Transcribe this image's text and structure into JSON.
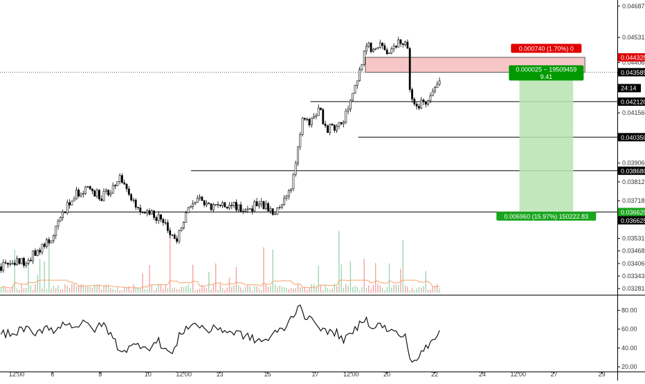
{
  "chart_data": {
    "type": "candlestick",
    "grid": false,
    "main_pane": {
      "ylim": [
        0.03254,
        0.04718
      ],
      "y_ticks": [
        "0.046875",
        "0.045315",
        "0.044065",
        "0.043560",
        "0.041560",
        "0.039060",
        "0.038125",
        "0.037185",
        "0.035310",
        "0.034685",
        "0.034060",
        "0.033435",
        "0.032810"
      ],
      "y_tick_values": [
        0.046875,
        0.045315,
        0.044065,
        0.04356,
        0.04156,
        0.03906,
        0.038125,
        0.037185,
        0.03531,
        0.034685,
        0.03406,
        0.033435,
        0.03281
      ],
      "price_overlap_label": "24:14",
      "horizontal_levels": [
        {
          "label": "0.042120",
          "value": 0.04212,
          "x_start": 13.0
        },
        {
          "label": "0.040350",
          "value": 0.04035,
          "x_start": 15.0
        },
        {
          "label": "0.038680",
          "value": 0.03868,
          "x_start": 8.0
        },
        {
          "label": "0.036625",
          "value": 0.036625,
          "x_start": 0.0
        }
      ],
      "current_price": {
        "label": "0.043585",
        "value": 0.043585
      },
      "stop_label": {
        "label": "0.044325",
        "value": 0.044325
      },
      "target_label": {
        "label": "0.036625",
        "value": 0.036625
      },
      "long_position_tool": {
        "entry": 0.043585,
        "stop": 0.044325,
        "target": 0.036625,
        "x_start": 21.75,
        "x_end": 24.0,
        "stop_text": "0.000740 (1.70%) 0",
        "entry_text_1": "0.000025 ~ 19509459",
        "entry_text_2": "9.41",
        "target_text": "0.006960 (15.97%) 150222.83"
      },
      "price_anchors": [
        [
          0.0,
          0.0339
        ],
        [
          0.4,
          0.034
        ],
        [
          1.0,
          0.0342
        ],
        [
          1.6,
          0.0347
        ],
        [
          2.0,
          0.0352
        ],
        [
          2.5,
          0.0362
        ],
        [
          2.8,
          0.0371
        ],
        [
          3.2,
          0.0376
        ],
        [
          3.7,
          0.0377
        ],
        [
          4.2,
          0.0374
        ],
        [
          4.6,
          0.0376
        ],
        [
          4.9,
          0.0384
        ],
        [
          5.2,
          0.0382
        ],
        [
          5.5,
          0.0372
        ],
        [
          5.9,
          0.0367
        ],
        [
          6.3,
          0.0366
        ],
        [
          6.7,
          0.0362
        ],
        [
          7.1,
          0.0356
        ],
        [
          7.3,
          0.035
        ],
        [
          7.6,
          0.036
        ],
        [
          7.9,
          0.0368
        ],
        [
          8.3,
          0.0372
        ],
        [
          8.8,
          0.0369
        ],
        [
          9.3,
          0.0371
        ],
        [
          9.8,
          0.0369
        ],
        [
          10.3,
          0.0368
        ],
        [
          10.8,
          0.037
        ],
        [
          11.3,
          0.0367
        ],
        [
          11.6,
          0.0367
        ],
        [
          11.9,
          0.0374
        ],
        [
          12.2,
          0.0381
        ],
        [
          12.3,
          0.0388
        ],
        [
          12.5,
          0.0402
        ],
        [
          12.6,
          0.0412
        ],
        [
          12.9,
          0.041
        ],
        [
          13.3,
          0.0418
        ],
        [
          13.6,
          0.0408
        ],
        [
          14.1,
          0.0408
        ],
        [
          14.4,
          0.0414
        ],
        [
          14.7,
          0.0422
        ],
        [
          15.0,
          0.0436
        ],
        [
          15.3,
          0.0451
        ],
        [
          15.6,
          0.0446
        ],
        [
          15.9,
          0.0451
        ],
        [
          16.2,
          0.0444
        ],
        [
          16.5,
          0.0449
        ],
        [
          16.8,
          0.0451
        ],
        [
          17.0,
          0.0451
        ],
        [
          17.1,
          0.0428
        ],
        [
          17.3,
          0.0418
        ],
        [
          17.6,
          0.0421
        ],
        [
          17.9,
          0.042
        ],
        [
          18.2,
          0.0428
        ],
        [
          18.4,
          0.0435
        ],
        [
          18.5,
          0.0437
        ]
      ],
      "volume_note": "Volume bars (green/red) with moving average overlay"
    },
    "oscillator_pane": {
      "ylim": [
        15,
        95
      ],
      "y_ticks": [
        "80.00",
        "60.00",
        "40.00",
        "20.00"
      ],
      "y_tick_values": [
        80,
        60,
        40,
        20
      ],
      "anchors": [
        [
          0.0,
          56
        ],
        [
          0.5,
          54
        ],
        [
          1.0,
          62
        ],
        [
          1.4,
          52
        ],
        [
          1.9,
          64
        ],
        [
          2.3,
          58
        ],
        [
          2.7,
          68
        ],
        [
          3.1,
          63
        ],
        [
          3.5,
          66
        ],
        [
          3.9,
          60
        ],
        [
          4.3,
          65
        ],
        [
          4.7,
          50
        ],
        [
          5.0,
          37
        ],
        [
          5.4,
          40
        ],
        [
          5.8,
          44
        ],
        [
          6.2,
          41
        ],
        [
          6.6,
          47
        ],
        [
          7.0,
          36
        ],
        [
          7.2,
          33
        ],
        [
          7.5,
          55
        ],
        [
          7.9,
          65
        ],
        [
          8.3,
          64
        ],
        [
          8.7,
          58
        ],
        [
          9.1,
          62
        ],
        [
          9.5,
          57
        ],
        [
          9.9,
          56
        ],
        [
          10.3,
          52
        ],
        [
          10.7,
          48
        ],
        [
          11.1,
          48
        ],
        [
          11.5,
          56
        ],
        [
          11.9,
          62
        ],
        [
          12.2,
          73
        ],
        [
          12.5,
          88
        ],
        [
          12.8,
          70
        ],
        [
          13.2,
          68
        ],
        [
          13.6,
          56
        ],
        [
          14.0,
          57
        ],
        [
          14.4,
          48
        ],
        [
          14.8,
          58
        ],
        [
          15.2,
          72
        ],
        [
          15.5,
          64
        ],
        [
          15.9,
          64
        ],
        [
          16.3,
          58
        ],
        [
          16.7,
          54
        ],
        [
          17.0,
          50
        ],
        [
          17.1,
          28
        ],
        [
          17.3,
          26
        ],
        [
          17.6,
          34
        ],
        [
          18.0,
          45
        ],
        [
          18.3,
          55
        ],
        [
          18.5,
          58
        ]
      ]
    },
    "x_axis": {
      "xlim": [
        0,
        25.85
      ],
      "ticks": [
        {
          "label": "12:00",
          "value": 0.7
        },
        {
          "label": "6",
          "value": 2.2
        },
        {
          "label": "8",
          "value": 4.2
        },
        {
          "label": "10",
          "value": 6.2
        },
        {
          "label": "12:00",
          "value": 7.7
        },
        {
          "label": "13",
          "value": 9.2
        },
        {
          "label": "15",
          "value": 11.2
        },
        {
          "label": "17",
          "value": 13.2
        },
        {
          "label": "12:00",
          "value": 14.7
        },
        {
          "label": "20",
          "value": 16.2
        },
        {
          "label": "22",
          "value": 18.2
        },
        {
          "label": "24",
          "value": 20.2
        },
        {
          "label": "12:00",
          "value": 21.7
        },
        {
          "label": "27",
          "value": 23.2
        },
        {
          "label": "29",
          "value": 25.2
        }
      ]
    },
    "colors": {
      "up": "#26a69a",
      "down": "#ef5350",
      "candle": "#000000",
      "level_line": "#000000",
      "profit_zone": "#b9e3b1",
      "loss_zone": "#f7c6c6",
      "stop_label_bg": "#e00000",
      "entry_label_bg": "#009900",
      "target_label_bg": "#18a51e",
      "axis_label_bg": "#000000",
      "volume_up": "#9fd6b0",
      "volume_down": "#f4a3a3",
      "volume_ma": "#f7a26d"
    }
  }
}
